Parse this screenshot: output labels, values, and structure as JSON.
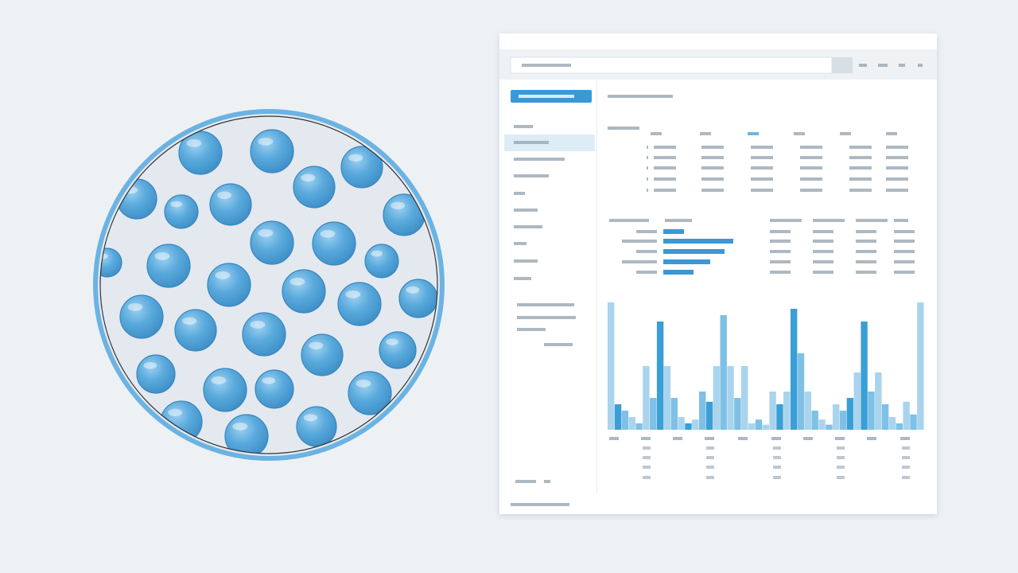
{
  "chart_data": {
    "type": "bar",
    "values": [
      100,
      20,
      15,
      10,
      5,
      50,
      25,
      85,
      50,
      25,
      10,
      5,
      8,
      30,
      22,
      50,
      90,
      50,
      25,
      50,
      5,
      8,
      4,
      30,
      20,
      30,
      95,
      60,
      30,
      15,
      8,
      4,
      20,
      15,
      25,
      45,
      85,
      30,
      45,
      20,
      10,
      5,
      22,
      12,
      100
    ],
    "colors": [
      "#a9d4ee",
      "#3a9fd6",
      "#7fc0e6",
      "#a9d4ee",
      "#7fc0e6",
      "#a9d4ee",
      "#7fc0e6",
      "#3a9fd6",
      "#a9d4ee",
      "#7fc0e6",
      "#a9d4ee",
      "#3a9fd6",
      "#a9d4ee",
      "#7fc0e6",
      "#3a9fd6",
      "#a9d4ee",
      "#7fc0e6",
      "#a9d4ee",
      "#7fc0e6",
      "#a9d4ee",
      "#a9d4ee",
      "#7fc0e6",
      "#a9d4ee",
      "#a9d4ee",
      "#3a9fd6",
      "#a9d4ee",
      "#3a9fd6",
      "#7fc0e6",
      "#a9d4ee",
      "#7fc0e6",
      "#a9d4ee",
      "#7fc0e6",
      "#a9d4ee",
      "#7fc0e6",
      "#3a9fd6",
      "#a9d4ee",
      "#3a9fd6",
      "#7fc0e6",
      "#a9d4ee",
      "#7fc0e6",
      "#a9d4ee",
      "#7fc0e6",
      "#a9d4ee",
      "#7fc0e6",
      "#a9d4ee"
    ],
    "ylim": [
      0,
      100
    ]
  }
}
